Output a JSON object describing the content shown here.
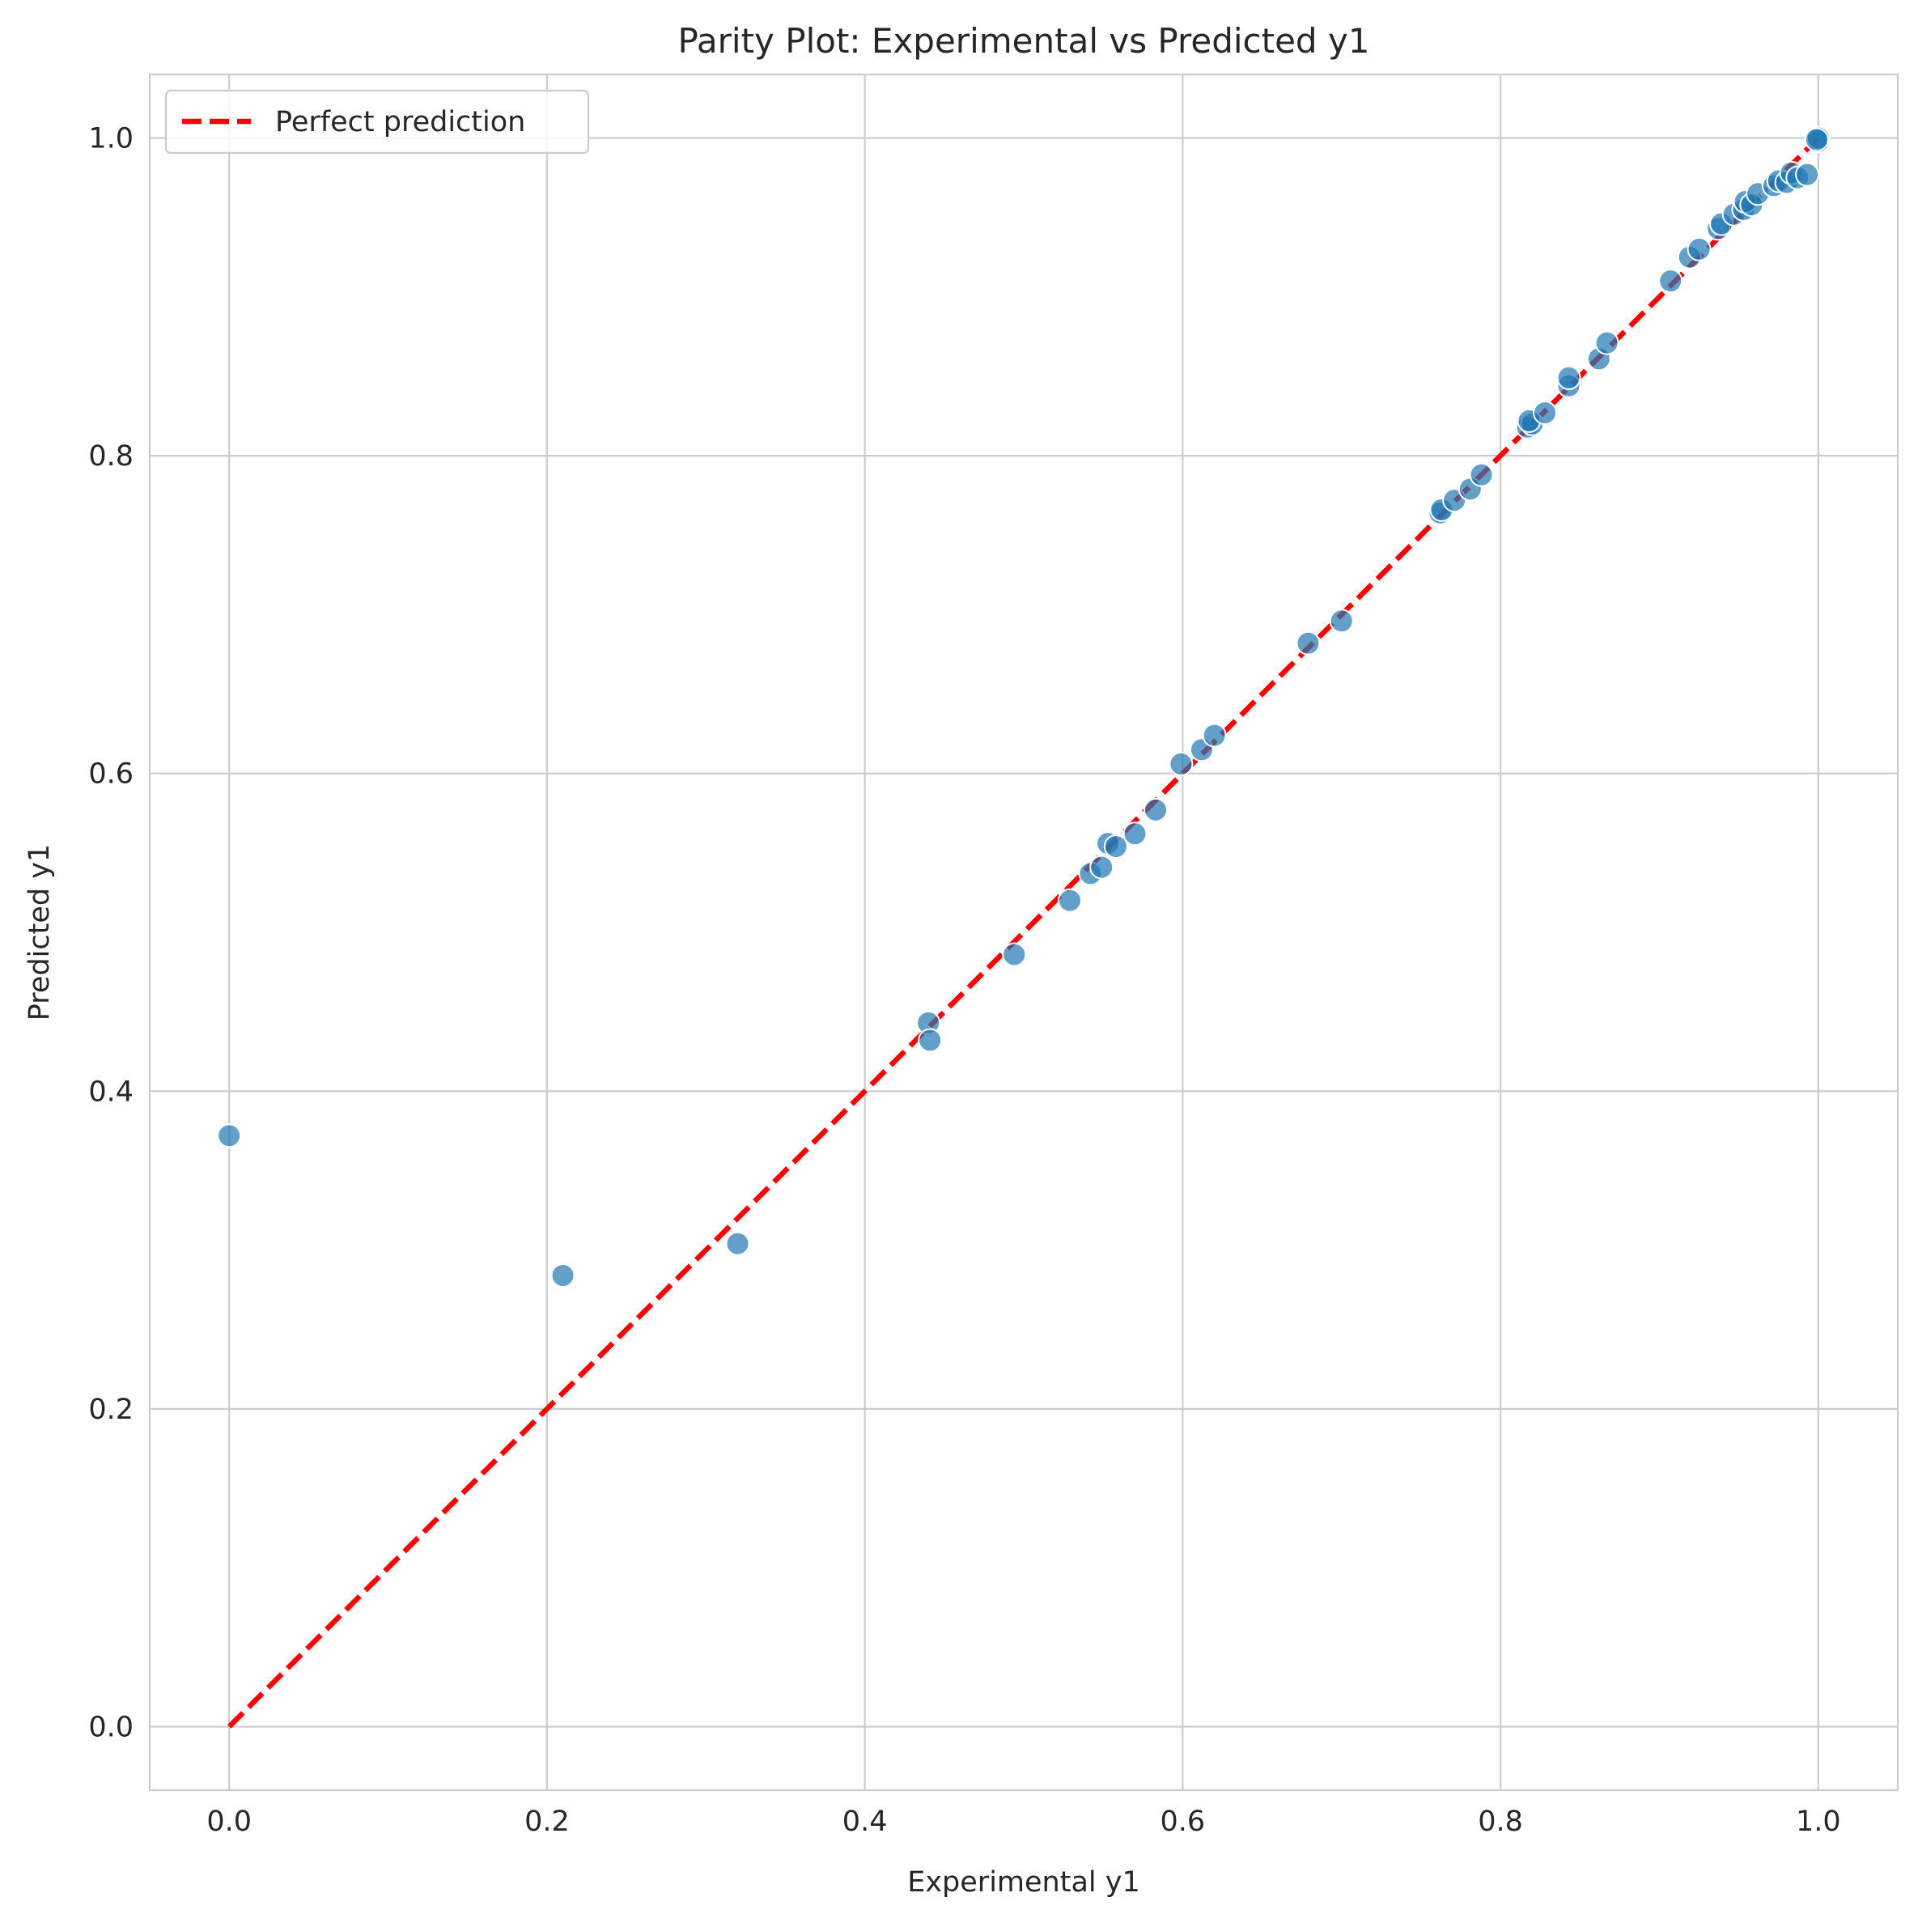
{
  "chart_data": {
    "type": "scatter",
    "title": "Parity Plot: Experimental vs Predicted y1",
    "xlabel": "Experimental y1",
    "ylabel": "Predicted y1",
    "xlim": [
      -0.05,
      1.05
    ],
    "ylim": [
      -0.04,
      1.04
    ],
    "xticks": [
      "0.0",
      "0.2",
      "0.4",
      "0.6",
      "0.8",
      "1.0"
    ],
    "yticks": [
      "0.0",
      "0.2",
      "0.4",
      "0.6",
      "0.8",
      "1.0"
    ],
    "grid": true,
    "legend": {
      "placement": "top-left",
      "entries": [
        "Perfect prediction"
      ]
    },
    "reference_line": {
      "name": "Perfect prediction",
      "x": [
        0,
        1
      ],
      "y": [
        0,
        1
      ],
      "color": "#ff0000",
      "style": "dashed"
    },
    "point_color": "#1f77b4",
    "points": [
      [
        0.0,
        0.372
      ],
      [
        0.21,
        0.284
      ],
      [
        0.32,
        0.304
      ],
      [
        0.44,
        0.443
      ],
      [
        0.441,
        0.432
      ],
      [
        0.494,
        0.486
      ],
      [
        0.529,
        0.52
      ],
      [
        0.542,
        0.537
      ],
      [
        0.549,
        0.541
      ],
      [
        0.553,
        0.556
      ],
      [
        0.558,
        0.554
      ],
      [
        0.57,
        0.562
      ],
      [
        0.583,
        0.577
      ],
      [
        0.599,
        0.606
      ],
      [
        0.612,
        0.615
      ],
      [
        0.62,
        0.624
      ],
      [
        0.679,
        0.682
      ],
      [
        0.7,
        0.696
      ],
      [
        0.762,
        0.764
      ],
      [
        0.763,
        0.766
      ],
      [
        0.771,
        0.772
      ],
      [
        0.781,
        0.779
      ],
      [
        0.788,
        0.788
      ],
      [
        0.817,
        0.818
      ],
      [
        0.82,
        0.82
      ],
      [
        0.818,
        0.822
      ],
      [
        0.828,
        0.827
      ],
      [
        0.843,
        0.844
      ],
      [
        0.843,
        0.849
      ],
      [
        0.862,
        0.861
      ],
      [
        0.867,
        0.871
      ],
      [
        0.907,
        0.91
      ],
      [
        0.919,
        0.925
      ],
      [
        0.925,
        0.93
      ],
      [
        0.937,
        0.943
      ],
      [
        0.939,
        0.946
      ],
      [
        0.947,
        0.952
      ],
      [
        0.953,
        0.955
      ],
      [
        0.954,
        0.96
      ],
      [
        0.958,
        0.958
      ],
      [
        0.962,
        0.965
      ],
      [
        0.972,
        0.97
      ],
      [
        0.975,
        0.973
      ],
      [
        0.98,
        0.972
      ],
      [
        0.983,
        0.978
      ],
      [
        0.987,
        0.975
      ],
      [
        0.993,
        0.977
      ],
      [
        1.0,
        0.998
      ],
      [
        1.0,
        1.0
      ],
      [
        0.999,
        0.999
      ]
    ]
  }
}
